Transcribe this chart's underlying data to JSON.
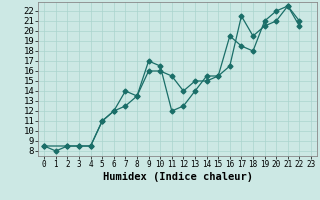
{
  "xlabel": "Humidex (Indice chaleur)",
  "bg_color": "#cce8e4",
  "grid_color": "#aad4ce",
  "line_color": "#1a6e68",
  "xlim": [
    -0.5,
    23.5
  ],
  "ylim": [
    7.5,
    22.9
  ],
  "xticks": [
    0,
    1,
    2,
    3,
    4,
    5,
    6,
    7,
    8,
    9,
    10,
    11,
    12,
    13,
    14,
    15,
    16,
    17,
    18,
    19,
    20,
    21,
    22,
    23
  ],
  "yticks": [
    8,
    9,
    10,
    11,
    12,
    13,
    14,
    15,
    16,
    17,
    18,
    19,
    20,
    21,
    22
  ],
  "line1_x": [
    0,
    1,
    2,
    3,
    4,
    5,
    6,
    7,
    8,
    9,
    10,
    11,
    12,
    13,
    14,
    15,
    16,
    17,
    18,
    19,
    20,
    21,
    22
  ],
  "line1_y": [
    8.5,
    8.0,
    8.5,
    8.5,
    8.5,
    11.0,
    12.0,
    14.0,
    13.5,
    17.0,
    16.5,
    12.0,
    12.5,
    14.0,
    15.5,
    15.5,
    16.5,
    21.5,
    19.5,
    20.5,
    21.0,
    22.5,
    20.5
  ],
  "line2_x": [
    0,
    2,
    3,
    4,
    5,
    6,
    7,
    8,
    9,
    10,
    11,
    12,
    13,
    14,
    15,
    16,
    17,
    18,
    19,
    20,
    21,
    22
  ],
  "line2_y": [
    8.5,
    8.5,
    8.5,
    8.5,
    11.0,
    12.0,
    12.5,
    13.5,
    16.0,
    16.0,
    15.5,
    14.0,
    15.0,
    15.0,
    15.5,
    19.5,
    18.5,
    18.0,
    21.0,
    22.0,
    22.5,
    21.0
  ],
  "xlabel_fontsize": 7.5,
  "tick_fontsize": 6.0,
  "linewidth": 0.9,
  "markersize": 2.5
}
